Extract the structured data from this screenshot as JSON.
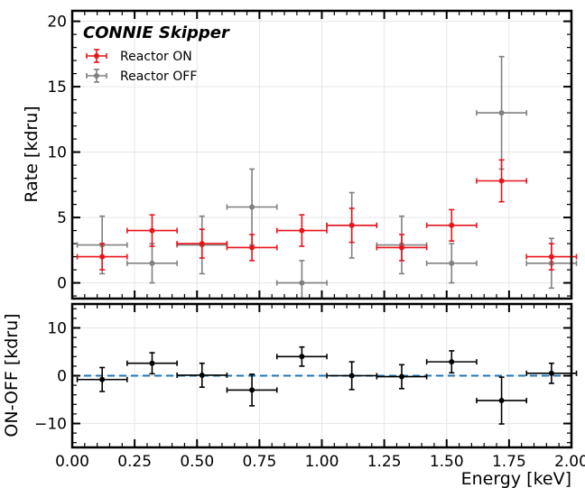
{
  "chart_data": [
    {
      "type": "scatter",
      "panel": "top",
      "title": "CONNIE Skipper",
      "xlabel": "",
      "ylabel": "Rate [kdru]",
      "xlim": [
        0.0,
        2.0
      ],
      "ylim": [
        -1.2,
        20.8
      ],
      "yticks": [
        0,
        5,
        10,
        15,
        20
      ],
      "ytick_labels": [
        "0",
        "5",
        "10",
        "15",
        "20"
      ],
      "xticks": [
        0.0,
        0.25,
        0.5,
        0.75,
        1.0,
        1.25,
        1.5,
        1.75,
        2.0
      ],
      "grid": true,
      "legend_position": "top-left",
      "series": [
        {
          "name": "Reactor ON",
          "color": "#e8141b",
          "x": [
            0.12,
            0.32,
            0.52,
            0.72,
            0.92,
            1.12,
            1.32,
            1.52,
            1.72,
            1.92
          ],
          "xerr": 0.1,
          "y": [
            2.0,
            4.0,
            3.0,
            2.7,
            4.0,
            4.4,
            2.7,
            4.4,
            7.8,
            2.0
          ],
          "yerr": [
            1.0,
            1.2,
            1.1,
            1.0,
            1.2,
            1.3,
            1.0,
            1.2,
            1.6,
            1.0
          ]
        },
        {
          "name": "Reactor OFF",
          "color": "#808080",
          "x": [
            0.12,
            0.32,
            0.52,
            0.72,
            0.92,
            1.12,
            1.32,
            1.52,
            1.72,
            1.92
          ],
          "xerr": 0.1,
          "y": [
            2.9,
            1.5,
            2.9,
            5.8,
            0.0,
            4.4,
            2.9,
            1.5,
            13.0,
            1.5
          ],
          "yerr": [
            2.2,
            1.5,
            2.2,
            2.9,
            1.7,
            2.5,
            2.2,
            1.5,
            4.3,
            1.9
          ]
        }
      ]
    },
    {
      "type": "scatter",
      "panel": "bottom",
      "xlabel": "Energy [keV]",
      "ylabel": "ON-OFF [kdru]",
      "xlim": [
        0.0,
        2.0
      ],
      "ylim": [
        -15,
        15
      ],
      "yticks": [
        -10,
        0,
        10
      ],
      "ytick_labels": [
        "−10",
        "0",
        "10"
      ],
      "xticks": [
        0.0,
        0.25,
        0.5,
        0.75,
        1.0,
        1.25,
        1.5,
        1.75,
        2.0
      ],
      "xtick_labels": [
        "0.00",
        "0.25",
        "0.50",
        "0.75",
        "1.00",
        "1.25",
        "1.50",
        "1.75",
        "2.00"
      ],
      "grid": true,
      "reference_line": {
        "y": 0,
        "color": "#1f77b4",
        "style": "dashed"
      },
      "series": [
        {
          "color": "#000000",
          "x": [
            0.12,
            0.32,
            0.52,
            0.72,
            0.92,
            1.12,
            1.32,
            1.52,
            1.72,
            1.92
          ],
          "xerr": 0.1,
          "y": [
            -0.8,
            2.6,
            0.1,
            -3.0,
            4.0,
            0.0,
            -0.2,
            2.9,
            -5.2,
            0.5
          ],
          "yerr": [
            2.5,
            2.2,
            2.5,
            3.3,
            2.0,
            2.9,
            2.5,
            2.3,
            4.9,
            2.1
          ]
        }
      ]
    }
  ]
}
